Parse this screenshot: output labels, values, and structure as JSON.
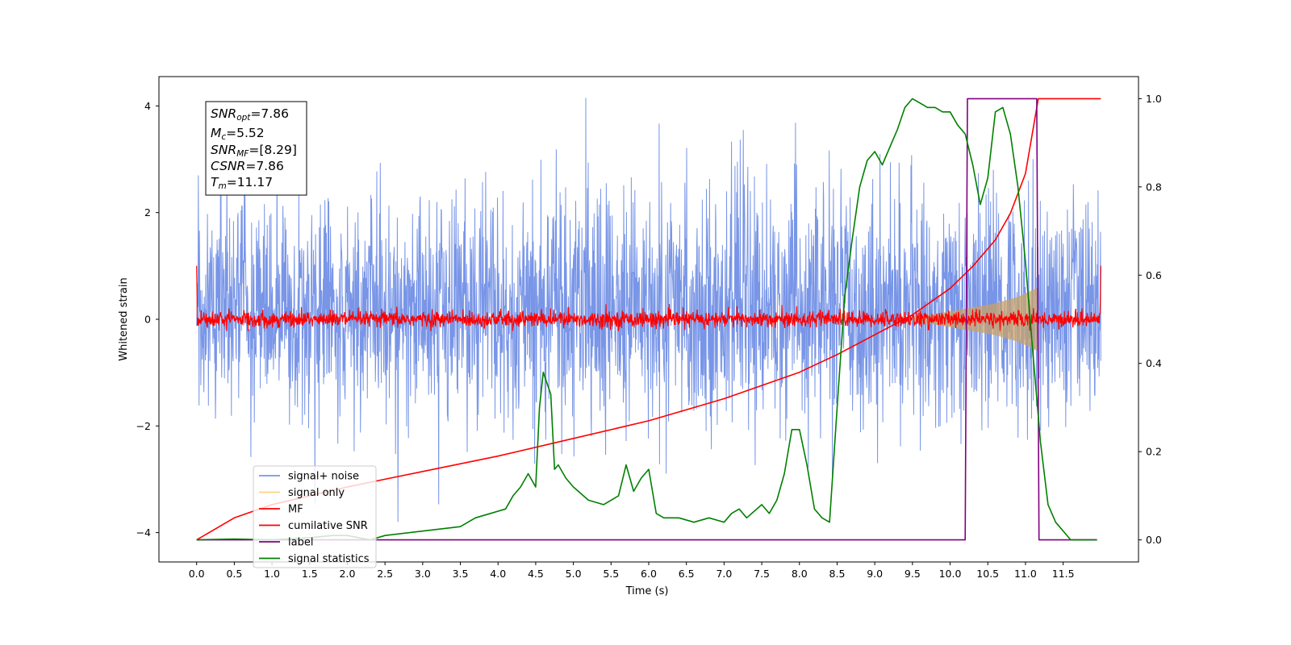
{
  "colors": {
    "noise": "#7895e7",
    "signal": "#c8a26a",
    "mf": "#ff0000",
    "cumulative": "#ff0000",
    "label": "#800080",
    "statistics": "#008000",
    "legend_signal_only": "#ffd27f"
  },
  "annotation": {
    "snr_opt": {
      "sym": "SNR",
      "sub": "opt",
      "value": "=7.86"
    },
    "mc": {
      "sym": "M",
      "sub": "c",
      "value": "=5.52"
    },
    "snr_mf": {
      "sym": "SNR",
      "sub": "MF",
      "value": "=[8.29]"
    },
    "csnr": {
      "sym": "CSNR",
      "sub": "",
      "value": "=7.86"
    },
    "tm": {
      "sym": "T",
      "sub": "m",
      "value": "=11.17"
    }
  },
  "chart_data": {
    "type": "line",
    "xlabel": "Time (s)",
    "ylabel": "Whitened strain",
    "xlim": [
      -0.5,
      12.5
    ],
    "ylim": [
      -4.55,
      4.55
    ],
    "y2lim": [
      -0.05,
      1.05
    ],
    "xticks": [
      0.0,
      0.5,
      1.0,
      1.5,
      2.0,
      2.5,
      3.0,
      3.5,
      4.0,
      4.5,
      5.0,
      5.5,
      6.0,
      6.5,
      7.0,
      7.5,
      8.0,
      8.5,
      9.0,
      9.5,
      10.0,
      10.5,
      11.0,
      11.5
    ],
    "xtick_labels": [
      "0.0",
      "0.5",
      "1.0",
      "1.5",
      "2.0",
      "2.5",
      "3.0",
      "3.5",
      "4.0",
      "4.5",
      "5.0",
      "5.5",
      "6.0",
      "6.5",
      "7.0",
      "7.5",
      "8.0",
      "8.5",
      "9.0",
      "9.5",
      "10.0",
      "10.5",
      "11.0",
      "11.5"
    ],
    "yticks": [
      -4,
      -2,
      0,
      2,
      4
    ],
    "ytick_labels": [
      "−4",
      "−2",
      "0",
      "2",
      "4"
    ],
    "y2ticks": [
      0.0,
      0.2,
      0.4,
      0.6,
      0.8,
      1.0
    ],
    "y2tick_labels": [
      "0.0",
      "0.2",
      "0.4",
      "0.6",
      "0.8",
      "1.0"
    ],
    "legend": {
      "position": "lower left",
      "entries": [
        "signal+ noise",
        "signal only",
        "MF",
        "cumilative SNR",
        "label",
        "signal statistics"
      ]
    },
    "series": [
      {
        "name": "signal+ noise",
        "axis": "left",
        "description": "dense whitened noise band spanning 0 to 12 s",
        "x_range": [
          0.0,
          12.0
        ],
        "typical_envelope": [
          -2.0,
          2.4
        ],
        "extreme_range": [
          -3.8,
          4.15
        ]
      },
      {
        "name": "signal only",
        "axis": "left",
        "description": "chirp growing in amplitude until merger",
        "x": [
          9.5,
          9.8,
          10.0,
          10.3,
          10.6,
          10.9,
          11.17
        ],
        "amplitude": [
          0.05,
          0.1,
          0.15,
          0.22,
          0.3,
          0.42,
          0.6
        ]
      },
      {
        "name": "MF",
        "axis": "left",
        "description": "matched-filter output, narrow band around 0 with edge spikes",
        "x_range": [
          0.0,
          12.0
        ],
        "envelope": [
          -0.2,
          0.2
        ],
        "edge_values": [
          1.0,
          1.0
        ]
      },
      {
        "name": "cumilative SNR",
        "axis": "right",
        "x": [
          0.0,
          0.5,
          1.0,
          2.0,
          3.0,
          4.0,
          5.0,
          6.0,
          7.0,
          8.0,
          8.5,
          9.0,
          9.5,
          10.0,
          10.3,
          10.6,
          10.8,
          11.0,
          11.17,
          12.0
        ],
        "y": [
          0.0,
          0.05,
          0.08,
          0.12,
          0.155,
          0.19,
          0.23,
          0.27,
          0.32,
          0.38,
          0.42,
          0.465,
          0.51,
          0.57,
          0.62,
          0.68,
          0.74,
          0.83,
          1.0,
          1.0
        ]
      },
      {
        "name": "label",
        "axis": "right",
        "x": [
          0.0,
          10.2,
          10.23,
          11.15,
          11.18,
          11.95
        ],
        "y": [
          0.0,
          0.0,
          1.0,
          1.0,
          0.0,
          0.0
        ]
      },
      {
        "name": "signal statistics",
        "axis": "right",
        "x": [
          0.0,
          0.5,
          1.0,
          1.5,
          1.8,
          2.0,
          2.3,
          2.5,
          3.0,
          3.5,
          3.7,
          3.9,
          4.1,
          4.2,
          4.3,
          4.4,
          4.5,
          4.55,
          4.6,
          4.7,
          4.75,
          4.8,
          4.9,
          5.0,
          5.2,
          5.4,
          5.5,
          5.6,
          5.7,
          5.8,
          5.9,
          6.0,
          6.1,
          6.2,
          6.4,
          6.6,
          6.8,
          7.0,
          7.1,
          7.2,
          7.3,
          7.5,
          7.6,
          7.7,
          7.8,
          7.9,
          8.0,
          8.1,
          8.2,
          8.3,
          8.4,
          8.5,
          8.6,
          8.7,
          8.8,
          8.9,
          9.0,
          9.1,
          9.2,
          9.3,
          9.4,
          9.5,
          9.6,
          9.7,
          9.8,
          9.9,
          10.0,
          10.1,
          10.2,
          10.3,
          10.4,
          10.5,
          10.6,
          10.7,
          10.8,
          10.9,
          11.0,
          11.1,
          11.2,
          11.3,
          11.4,
          11.6,
          11.95
        ],
        "y": [
          0.0,
          0.002,
          0.0,
          0.005,
          0.01,
          0.01,
          0.0,
          0.01,
          0.02,
          0.03,
          0.05,
          0.06,
          0.07,
          0.1,
          0.12,
          0.15,
          0.12,
          0.3,
          0.38,
          0.33,
          0.16,
          0.17,
          0.14,
          0.12,
          0.09,
          0.08,
          0.09,
          0.1,
          0.17,
          0.11,
          0.14,
          0.16,
          0.06,
          0.05,
          0.05,
          0.04,
          0.05,
          0.04,
          0.06,
          0.07,
          0.05,
          0.08,
          0.06,
          0.09,
          0.15,
          0.25,
          0.25,
          0.17,
          0.07,
          0.05,
          0.04,
          0.3,
          0.55,
          0.68,
          0.8,
          0.86,
          0.88,
          0.85,
          0.89,
          0.93,
          0.98,
          1.0,
          0.99,
          0.98,
          0.98,
          0.97,
          0.97,
          0.94,
          0.92,
          0.85,
          0.76,
          0.82,
          0.97,
          0.98,
          0.92,
          0.8,
          0.63,
          0.42,
          0.22,
          0.08,
          0.04,
          0.0,
          0.0
        ]
      }
    ]
  }
}
